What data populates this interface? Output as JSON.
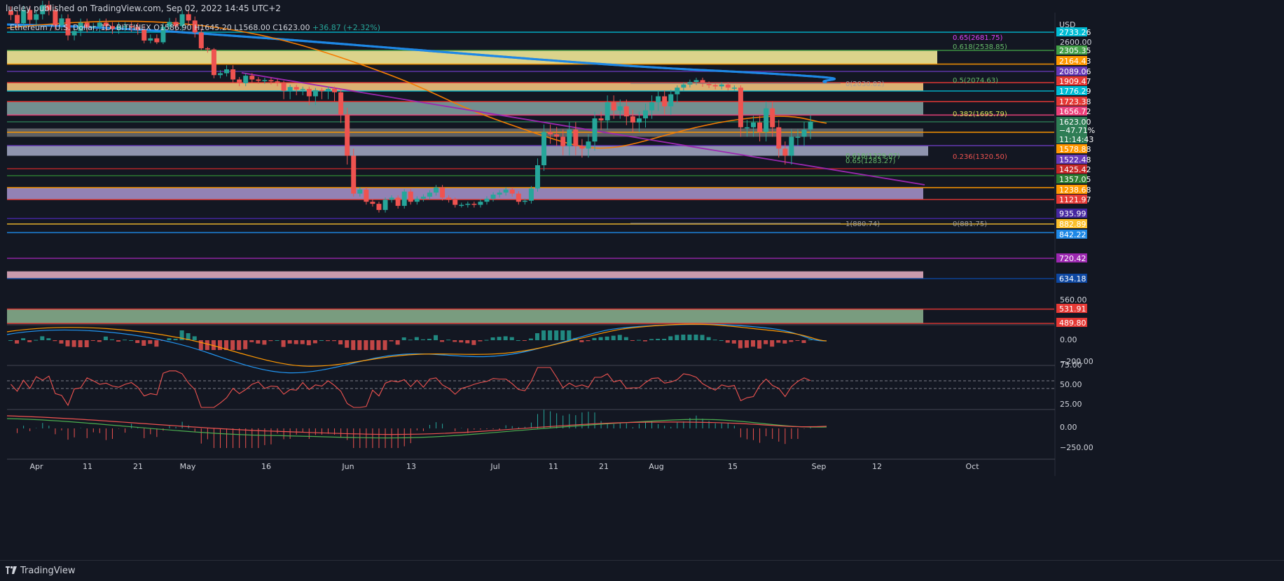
{
  "header": {
    "publisher_line": "lueley published on TradingView.com, Sep 02, 2022 14:45 UTC+2",
    "symbol": "Ethereum / U.S. Dollar, 1D, BITFINEX",
    "ohlc": "O1586.90 H1645.20 L1568.00 C1623.00",
    "change": "+36.87 (+2.32%)"
  },
  "brand": {
    "name": "TradingView"
  },
  "colors": {
    "background": "#131722",
    "up": "#26a69a",
    "down": "#ef5350",
    "ema": "#f57c00",
    "ma_long": "#1e88e5",
    "trendline": "#9c27b0"
  },
  "chart_data": {
    "type": "candlestick",
    "currency": "USD",
    "y_tick_labels": [
      "2600.00",
      "560.00"
    ],
    "price_labels": [
      {
        "value": "2733.26",
        "color": "#00bcd4"
      },
      {
        "value": "2305.35",
        "color": "#43a047"
      },
      {
        "value": "2164.43",
        "color": "#ff9800"
      },
      {
        "value": "2089.06",
        "color": "#673ab7"
      },
      {
        "value": "1909.47",
        "color": "#e53935"
      },
      {
        "value": "1776.29",
        "color": "#00bcd4"
      },
      {
        "value": "1723.38",
        "color": "#e53935"
      },
      {
        "value": "1656.72",
        "color": "#ec407a"
      },
      {
        "value": "1623.00",
        "color": "#2e7d55"
      },
      {
        "value": "−47.71%",
        "color": "#2e7d55"
      },
      {
        "value": "11:14:43",
        "color": "#2e7d55"
      },
      {
        "value": "1578.88",
        "color": "#ff9800"
      },
      {
        "value": "1522.48",
        "color": "#673ab7"
      },
      {
        "value": "1425.42",
        "color": "#c62828"
      },
      {
        "value": "1357.05",
        "color": "#2e7d32"
      },
      {
        "value": "1238.68",
        "color": "#ff9800"
      },
      {
        "value": "1121.97",
        "color": "#e53935"
      },
      {
        "value": "935.99",
        "color": "#4527a0"
      },
      {
        "value": "882.89",
        "color": "#fbc02d"
      },
      {
        "value": "842.22",
        "color": "#1e88e5"
      },
      {
        "value": "720.42",
        "color": "#9c27b0"
      },
      {
        "value": "634.18",
        "color": "#0d47a1"
      },
      {
        "value": "531.91",
        "color": "#e53935"
      },
      {
        "value": "489.80",
        "color": "#e53935"
      }
    ],
    "fib_labels": [
      {
        "text": "0.65(2681.75)",
        "color": "#e040fb"
      },
      {
        "text": "0.618(2538.85)",
        "color": "#66bb6a"
      },
      {
        "text": "0.5(2074.63)",
        "color": "#66bb6a"
      },
      {
        "text": "0(2030.82)",
        "color": "#9e9e9e"
      },
      {
        "text": "0.382(1695.79)",
        "color": "#d4e157"
      },
      {
        "text": "0.618(1329.07)",
        "color": "#66bb6a"
      },
      {
        "text": "0.65(1283.27)",
        "color": "#66bb6a"
      },
      {
        "text": "0.236(1320.50)",
        "color": "#ef5350"
      },
      {
        "text": "1(880.74)",
        "color": "#9e9e9e"
      },
      {
        "text": "0(881.75)",
        "color": "#9e9e9e"
      }
    ],
    "x_tick_labels": [
      "Apr",
      "11",
      "21",
      "May",
      "16",
      "Jun",
      "13",
      "Jul",
      "11",
      "21",
      "Aug",
      "15",
      "Sep",
      "12",
      "Oct"
    ],
    "candles_close": [
      2980,
      2860,
      3050,
      2910,
      2990,
      3120,
      3050,
      2830,
      2930,
      2690,
      2750,
      2870,
      2800,
      2810,
      2870,
      2820,
      2780,
      2820,
      2820,
      2810,
      2770,
      2620,
      2650,
      2590,
      2810,
      2880,
      2820,
      2990,
      2900,
      2730,
      2380,
      2340,
      2030,
      2060,
      2110,
      1960,
      1900,
      2020,
      1960,
      1940,
      1950,
      1930,
      1900,
      1780,
      1840,
      1800,
      1810,
      1750,
      1790,
      1780,
      1810,
      1770,
      1660,
      1480,
      1180,
      1220,
      1100,
      1080,
      1020,
      1120,
      1140,
      1060,
      1200,
      1100,
      1130,
      1150,
      1190,
      1240,
      1140,
      1120,
      1070,
      1070,
      1080,
      1070,
      1100,
      1130,
      1170,
      1190,
      1220,
      1180,
      1100,
      1110,
      1230,
      1440,
      1580,
      1570,
      1560,
      1520,
      1590,
      1520,
      1510,
      1540,
      1640,
      1630,
      1720,
      1680,
      1700,
      1650,
      1620,
      1640,
      1680,
      1720,
      1750,
      1700,
      1760,
      1830,
      1880,
      1920,
      1950,
      1890,
      1870,
      1850,
      1880,
      1830,
      1830,
      1600,
      1600,
      1620,
      1580,
      1690,
      1600,
      1510,
      1480,
      1560,
      1560,
      1590,
      1623
    ],
    "indicators": {
      "macd_ticks": [
        "0.00",
        "−200.00"
      ],
      "rsi_ticks": [
        "75.00",
        "50.00",
        "25.00"
      ],
      "osc_ticks": [
        "0.00",
        "−250.00"
      ]
    }
  }
}
